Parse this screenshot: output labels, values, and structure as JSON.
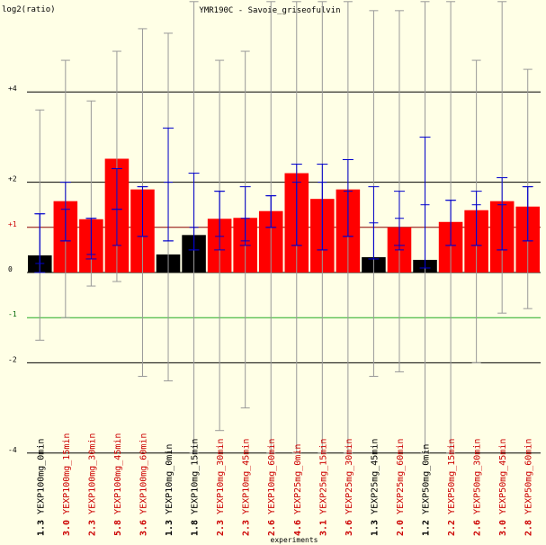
{
  "chart_data": {
    "type": "bar",
    "title": "YMR190C - Savoie_griseofulvin",
    "ylabel": "log2(ratio)",
    "xlabel": "experiments",
    "ylim": [
      -4,
      6
    ],
    "y_ticks": [
      {
        "value": 4,
        "label": "+4",
        "color": "#000000"
      },
      {
        "value": 2,
        "label": "+2",
        "color": "#000000"
      },
      {
        "value": 1,
        "label": "+1",
        "color": "#cc0000"
      },
      {
        "value": 0,
        "label": "0",
        "color": "#000000"
      },
      {
        "value": -1,
        "label": "-1",
        "color": "#006600"
      },
      {
        "value": -2,
        "label": "-2",
        "color": "#000000"
      },
      {
        "value": -4,
        "label": "-4",
        "color": "#000000"
      }
    ],
    "reference_lines": [
      {
        "value": 4,
        "color": "#000000"
      },
      {
        "value": 2,
        "color": "#000000"
      },
      {
        "value": 1,
        "color": "#8b0000"
      },
      {
        "value": 0,
        "color": "#000000"
      },
      {
        "value": -1,
        "color": "#22aa22"
      },
      {
        "value": -2,
        "color": "#000000"
      },
      {
        "value": -4,
        "color": "#000000"
      }
    ],
    "colors": {
      "up": "#ff0000",
      "neutral": "#000000",
      "error_outer": "#999999",
      "error_inner": "#0000cc",
      "background": "#ffffe6"
    },
    "categories": [
      "YEXP100mg_0min",
      "YEXP100mg_15min",
      "YEXP100mg_30min",
      "YEXP100mg_45min",
      "YEXP100mg_60min",
      "YEXP10mg_0min",
      "YEXP10mg_15min",
      "YEXP10mg_30min",
      "YEXP10mg_45min",
      "YEXP10mg_60min",
      "YEXP25mg_0min",
      "YEXP25mg_15min",
      "YEXP25mg_30min",
      "YEXP25mg_45min",
      "YEXP25mg_60min",
      "YEXP50mg_0min",
      "YEXP50mg_15min",
      "YEXP50mg_30min",
      "YEXP50mg_45min",
      "YEXP50mg_60min"
    ],
    "value_labels": [
      "1.3",
      "3.0",
      "2.3",
      "5.8",
      "3.6",
      "1.3",
      "1.8",
      "2.3",
      "2.3",
      "2.6",
      "4.6",
      "3.1",
      "3.6",
      "1.3",
      "2.0",
      "1.2",
      "2.2",
      "2.6",
      "3.0",
      "2.8"
    ],
    "values": [
      0.38,
      1.58,
      1.18,
      2.52,
      1.84,
      0.4,
      0.83,
      1.19,
      1.21,
      1.36,
      2.2,
      1.63,
      1.84,
      0.34,
      1.0,
      0.28,
      1.12,
      1.38,
      1.58,
      1.46
    ],
    "label_colors": [
      "#000000",
      "#cc0000",
      "#cc0000",
      "#cc0000",
      "#cc0000",
      "#000000",
      "#000000",
      "#cc0000",
      "#cc0000",
      "#cc0000",
      "#cc0000",
      "#cc0000",
      "#cc0000",
      "#000000",
      "#cc0000",
      "#000000",
      "#cc0000",
      "#cc0000",
      "#cc0000",
      "#cc0000"
    ],
    "bar_colors": [
      "#000000",
      "#ff0000",
      "#ff0000",
      "#ff0000",
      "#ff0000",
      "#000000",
      "#000000",
      "#ff0000",
      "#ff0000",
      "#ff0000",
      "#ff0000",
      "#ff0000",
      "#ff0000",
      "#000000",
      "#ff0000",
      "#000000",
      "#ff0000",
      "#ff0000",
      "#ff0000",
      "#ff0000"
    ],
    "error_outer": [
      [
        -1.5,
        3.6
      ],
      [
        -1.0,
        4.7
      ],
      [
        -0.3,
        3.8
      ],
      [
        -0.2,
        4.9
      ],
      [
        -2.3,
        5.4
      ],
      [
        -2.4,
        5.3
      ],
      [
        -4.0,
        6.0
      ],
      [
        -3.5,
        4.7
      ],
      [
        -3.0,
        4.9
      ],
      [
        -4.0,
        6.0
      ],
      [
        -4.0,
        6.0
      ],
      [
        -4.0,
        6.0
      ],
      [
        -4.0,
        6.0
      ],
      [
        -2.3,
        5.8
      ],
      [
        -2.2,
        5.8
      ],
      [
        -4.0,
        6.0
      ],
      [
        -4.0,
        6.0
      ],
      [
        -2.0,
        4.7
      ],
      [
        -0.9,
        6.0
      ],
      [
        -0.8,
        4.5
      ]
    ],
    "error_mid": [
      [
        0.0,
        1.3
      ],
      [
        0.7,
        2.0
      ],
      [
        0.3,
        1.2
      ],
      [
        1.4,
        2.3
      ],
      [
        0.8,
        1.9
      ],
      [
        0.7,
        3.2
      ],
      [
        0.5,
        2.2
      ],
      [
        0.5,
        1.8
      ],
      [
        0.6,
        1.9
      ],
      [
        1.0,
        1.7
      ],
      [
        0.6,
        2.4
      ],
      [
        0.5,
        2.4
      ],
      [
        0.8,
        2.5
      ],
      [
        0.3,
        1.9
      ],
      [
        0.6,
        1.8
      ],
      [
        0.1,
        3.0
      ],
      [
        0.6,
        1.6
      ],
      [
        0.6,
        1.8
      ],
      [
        0.5,
        2.1
      ],
      [
        0.7,
        1.9
      ]
    ],
    "error_inner": [
      [
        0.2,
        1.3
      ],
      [
        0.7,
        1.4
      ],
      [
        0.4,
        1.2
      ],
      [
        0.6,
        1.4
      ],
      [
        0.8,
        1.9
      ],
      [
        0.7,
        2.0
      ],
      [
        0.5,
        1.0
      ],
      [
        0.8,
        1.8
      ],
      [
        0.7,
        1.2
      ],
      [
        1.0,
        1.7
      ],
      [
        0.6,
        2.0
      ],
      [
        0.5,
        2.0
      ],
      [
        0.8,
        1.8
      ],
      [
        0.3,
        1.1
      ],
      [
        0.5,
        1.2
      ],
      [
        0.1,
        1.5
      ],
      [
        0.6,
        1.6
      ],
      [
        0.6,
        1.5
      ],
      [
        0.5,
        1.5
      ],
      [
        0.7,
        1.9
      ]
    ]
  }
}
